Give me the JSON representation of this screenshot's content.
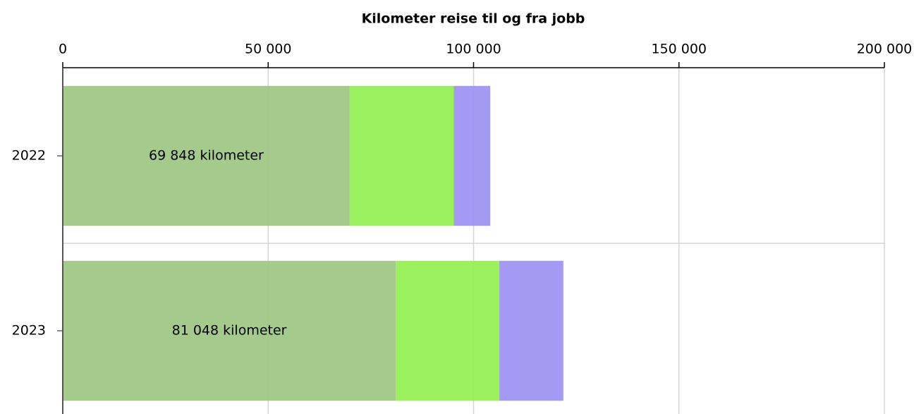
{
  "chart_data": {
    "type": "stacked-barh",
    "title": "Kilometer reise til og fra jobb",
    "categories": [
      "2022",
      "2023"
    ],
    "series": [
      {
        "color": "#9dc683",
        "values": [
          69848,
          81048
        ],
        "value_labels": [
          "69 848 kilometer",
          "81 048 kilometer"
        ]
      },
      {
        "color": "#93f051",
        "values": [
          25300,
          25200
        ]
      },
      {
        "color": "#9d92f2",
        "values": [
          8900,
          15600
        ]
      }
    ],
    "xlim": [
      0,
      200000
    ],
    "xticks": [
      0,
      {
        "value": 50000,
        "label": "50 000"
      },
      {
        "value": 100000,
        "label": "100 000"
      },
      {
        "value": 150000,
        "label": "150 000"
      },
      {
        "value": 200000,
        "label": "200 000"
      }
    ],
    "grid": true
  }
}
